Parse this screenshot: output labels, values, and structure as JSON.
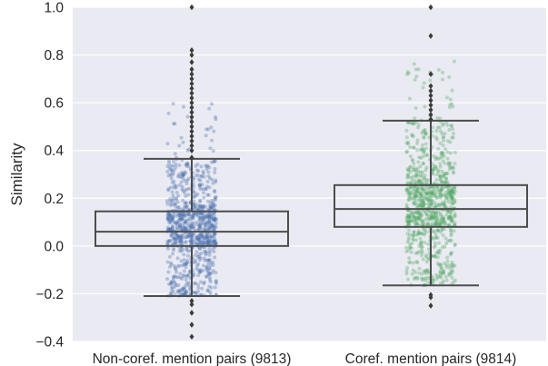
{
  "chart_data": {
    "type": "box",
    "categories": [
      "Non-coref. mention pairs (9813)",
      "Coref. mention pairs (9814)"
    ],
    "ylabel": "Similarity",
    "xlabel": "",
    "ylim": [
      -0.4,
      1.0
    ],
    "yticks": [
      -0.4,
      -0.2,
      0.0,
      0.2,
      0.4,
      0.6,
      0.8,
      1.0
    ],
    "ytick_labels": [
      "−0.4",
      "−0.2",
      "0.0",
      "0.2",
      "0.4",
      "0.6",
      "0.8",
      "1.0"
    ],
    "grid": true,
    "plot_background": "#eaeaf2",
    "strip_colors": [
      "#4c72b0",
      "#55a868"
    ],
    "box_color": "#4d4d4d",
    "boxes": [
      {
        "category": "Non-coref. mention pairs (9813)",
        "whisker_low": -0.21,
        "q1": 0.0,
        "median": 0.06,
        "q3": 0.145,
        "whisker_high": 0.365,
        "outliers": [
          -0.23,
          -0.245,
          -0.28,
          -0.33,
          -0.38,
          0.37,
          0.4,
          0.42,
          0.44,
          0.46,
          0.48,
          0.5,
          0.52,
          0.54,
          0.56,
          0.58,
          0.6,
          0.62,
          0.64,
          0.66,
          0.68,
          0.7,
          0.72,
          0.74,
          0.77,
          0.8,
          0.82,
          1.0
        ]
      },
      {
        "category": "Coref. mention pairs (9814)",
        "whisker_low": -0.165,
        "q1": 0.08,
        "median": 0.155,
        "q3": 0.255,
        "whisker_high": 0.525,
        "outliers": [
          -0.205,
          -0.215,
          -0.25,
          0.53,
          0.55,
          0.57,
          0.59,
          0.61,
          0.63,
          0.65,
          0.67,
          0.72,
          0.88,
          1.0
        ]
      }
    ]
  }
}
